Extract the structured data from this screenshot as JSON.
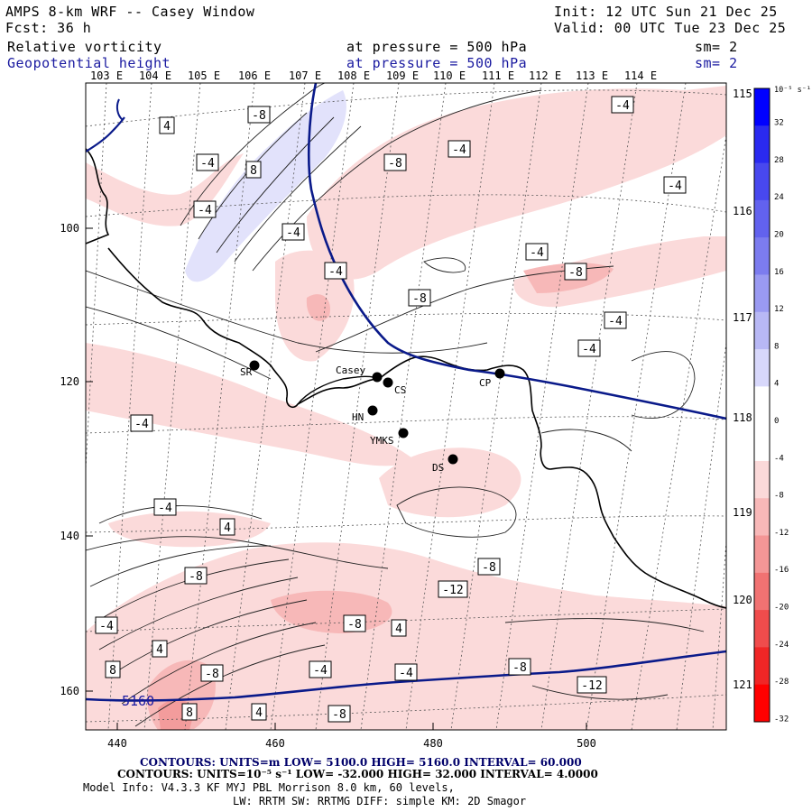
{
  "header": {
    "title": "AMPS 8-km WRF -- Casey Window",
    "forecast": "Fcst:   36 h",
    "init": "Init: 12 UTC Sun 21 Dec 25",
    "valid": "Valid: 00 UTC Tue 23 Dec 25",
    "field1": {
      "name": "Relative vorticity",
      "level": "at pressure =  500 hPa",
      "smooth": "sm= 2"
    },
    "field2": {
      "name": "Geopotential height",
      "level": "at pressure =  500 hPa",
      "smooth": "sm= 2"
    }
  },
  "longitude_labels_top": [
    "103 E",
    "104 E",
    "105 E",
    "106 E",
    "107 E",
    "108 E",
    "109 E",
    "110 E",
    "111 E",
    "112 E",
    "113 E",
    "114 E"
  ],
  "longitude_labels_right": [
    "115 E",
    "116 E",
    "117 E",
    "118 E",
    "119 E",
    "120 E",
    "121 E"
  ],
  "x_axis_ticks": [
    "440",
    "460",
    "480",
    "500"
  ],
  "y_axis_ticks": [
    "100",
    "120",
    "140",
    "160"
  ],
  "colorbar": {
    "unit_label": "10⁻⁵ s⁻¹",
    "labels": [
      "32",
      "28",
      "24",
      "20",
      "16",
      "12",
      "8",
      "4",
      "0",
      "-4",
      "-8",
      "-12",
      "-16",
      "-20",
      "-24",
      "-28",
      "-32"
    ],
    "colors": [
      "#0000ff",
      "#2a2af0",
      "#4848ee",
      "#6262ee",
      "#7c7cef",
      "#9a9af2",
      "#b8b8f5",
      "#d8d8fb",
      "#ffffff",
      "#ffffff",
      "#fbd9d9",
      "#f8b8b8",
      "#f49696",
      "#f17272",
      "#f04c4c",
      "#f02626",
      "#ff0000"
    ]
  },
  "stations": [
    "SR",
    "Casey",
    "CS",
    "CP",
    "HN",
    "YMKS",
    "DS"
  ],
  "geopotential_label": "5160",
  "contour_labels": [
    "-8",
    "4",
    "-4",
    "8",
    "-4",
    "-4",
    "-4",
    "-8",
    "-4",
    "-8",
    "-4",
    "-4",
    "-8",
    "-4",
    "-4",
    "-4",
    "-4",
    "-4",
    "4",
    "-8",
    "-8",
    "-12",
    "-8",
    "4",
    "8",
    "-8",
    "4",
    "-4",
    "-4",
    "-8",
    "-12",
    "8",
    "-8",
    "4",
    "-4"
  ],
  "footer": {
    "line1": "CONTOURS:  UNITS=m  LOW=  5100.0        HIGH=  5160.0       INTERVAL=  60.000",
    "line2": "CONTOURS:  UNITS=10⁻⁵ s⁻¹  LOW= -32.000        HIGH=  32.000       INTERVAL=  4.0000",
    "line3": "Model Info: V4.3.3    KF      MYJ PBL  Morrison         8.0 km,  60 levels,",
    "line4": "LW: RRTM SW: RRTMG   DIFF: simple KM: 2D Smagor"
  }
}
